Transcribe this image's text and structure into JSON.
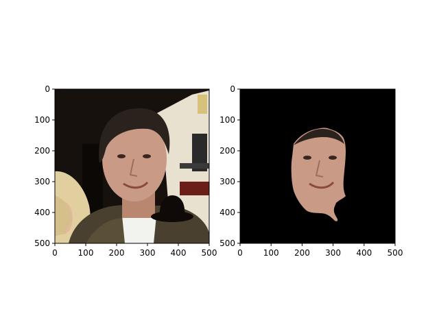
{
  "figure": {
    "panels": [
      {
        "name": "original-photo",
        "image_description": "photo of a smiling man with dark hair, dark jacket over white shirt, blonde woman partially visible at left edge, poster with text in background, black hat-shaped occluder near his chin/shoulder",
        "xticks": [
          "0",
          "100",
          "200",
          "300",
          "400",
          "500"
        ],
        "yticks": [
          "0",
          "100",
          "200",
          "300",
          "400",
          "500"
        ]
      },
      {
        "name": "face-mask",
        "image_description": "same face segmented and isolated on a black background",
        "xticks": [
          "0",
          "100",
          "200",
          "300",
          "400",
          "500"
        ],
        "yticks": [
          "0",
          "100",
          "200",
          "300",
          "400",
          "500"
        ]
      }
    ],
    "colors": {
      "background": "#ffffff",
      "axis": "#000000",
      "mask_bg": "#000000",
      "skin": "#c99a86",
      "hair": "#2a221d",
      "jacket": "#4a4030",
      "shirt": "#f2f2ef",
      "poster": "#e9e1cf",
      "blonde": "#e2cf9f",
      "occluder": "#0f0908"
    }
  }
}
